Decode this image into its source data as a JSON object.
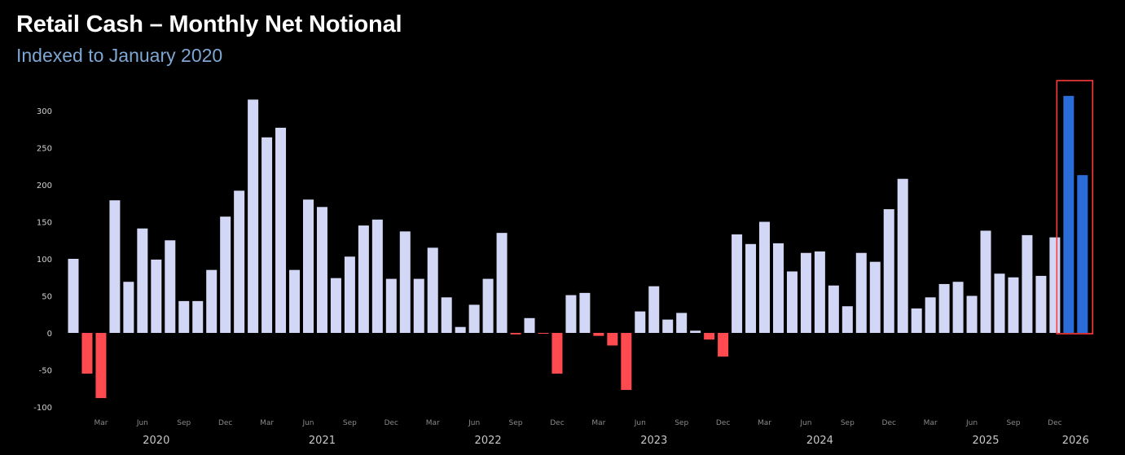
{
  "chart_data": {
    "type": "bar",
    "title": "Retail Cash – Monthly Net Notional",
    "subtitle": "Indexed to January 2020",
    "xlabel": "",
    "ylabel": "",
    "ylim": [
      -100,
      320
    ],
    "yticks": [
      -100,
      -50,
      0,
      50,
      100,
      150,
      200,
      250,
      300
    ],
    "start": {
      "year": 2020,
      "month": 1
    },
    "month_tick_labels": {
      "3": "Mar",
      "6": "Jun",
      "9": "Sep",
      "12": "Dec"
    },
    "year_labels": [
      "2020",
      "2021",
      "2022",
      "2023",
      "2024",
      "2025",
      "2026"
    ],
    "values": [
      100,
      -55,
      -88,
      179,
      69,
      141,
      99,
      125,
      43,
      43,
      85,
      157,
      192,
      315,
      264,
      277,
      85,
      180,
      170,
      74,
      103,
      145,
      153,
      73,
      137,
      73,
      115,
      48,
      8,
      38,
      73,
      135,
      -2,
      20,
      -1,
      -55,
      51,
      54,
      -4,
      -17,
      -77,
      29,
      63,
      18,
      27,
      3,
      -9,
      -32,
      133,
      120,
      150,
      121,
      83,
      108,
      110,
      64,
      36,
      108,
      96,
      167,
      208,
      33,
      48,
      66,
      69,
      50,
      138,
      80,
      75,
      132,
      77,
      129,
      320,
      213
    ],
    "highlight_last_n": 2,
    "grid": false,
    "colors": {
      "positive": "#d3d7f6",
      "negative": "#ff4a4f",
      "highlight": "#2a6cd8",
      "highlight_box": "#ff3b3b",
      "background": "#000000"
    }
  }
}
